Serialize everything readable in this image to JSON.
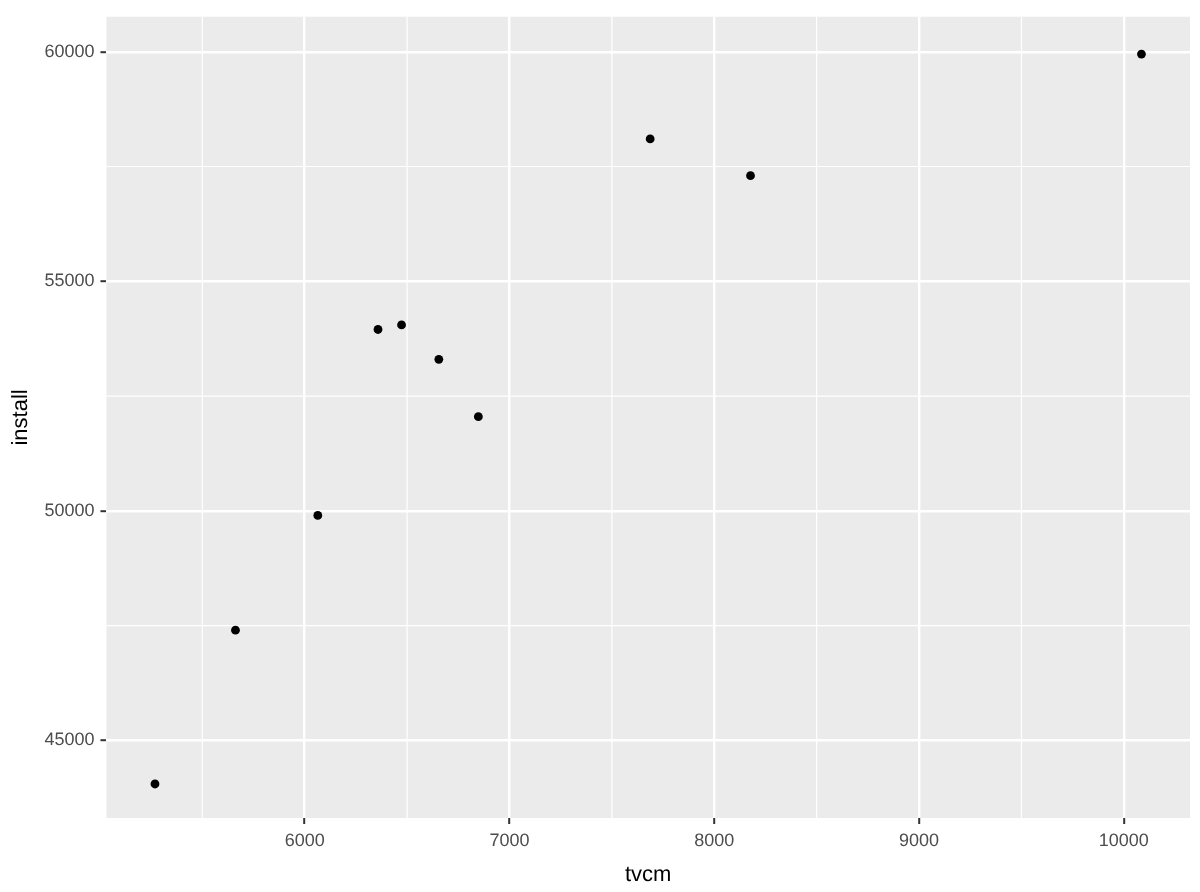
{
  "chart_data": {
    "type": "scatter",
    "xlabel": "tvcm",
    "ylabel": "install",
    "x": [
      5269,
      5662,
      6064,
      6358,
      6473,
      6655,
      6848,
      7687,
      8177,
      10086
    ],
    "series": [
      {
        "color": "#000000",
        "values": [
          44050,
          47400,
          49900,
          53950,
          54050,
          53300,
          52050,
          58100,
          57300,
          59950
        ]
      }
    ],
    "xlim": [
      5032,
      10323
    ],
    "xticks": [
      6000,
      7000,
      8000,
      9000,
      10000
    ],
    "ylim": [
      43309,
      60761
    ],
    "yticks": [
      45000,
      50000,
      55000,
      60000
    ],
    "grid": true,
    "marker": "circle",
    "legend": false
  }
}
